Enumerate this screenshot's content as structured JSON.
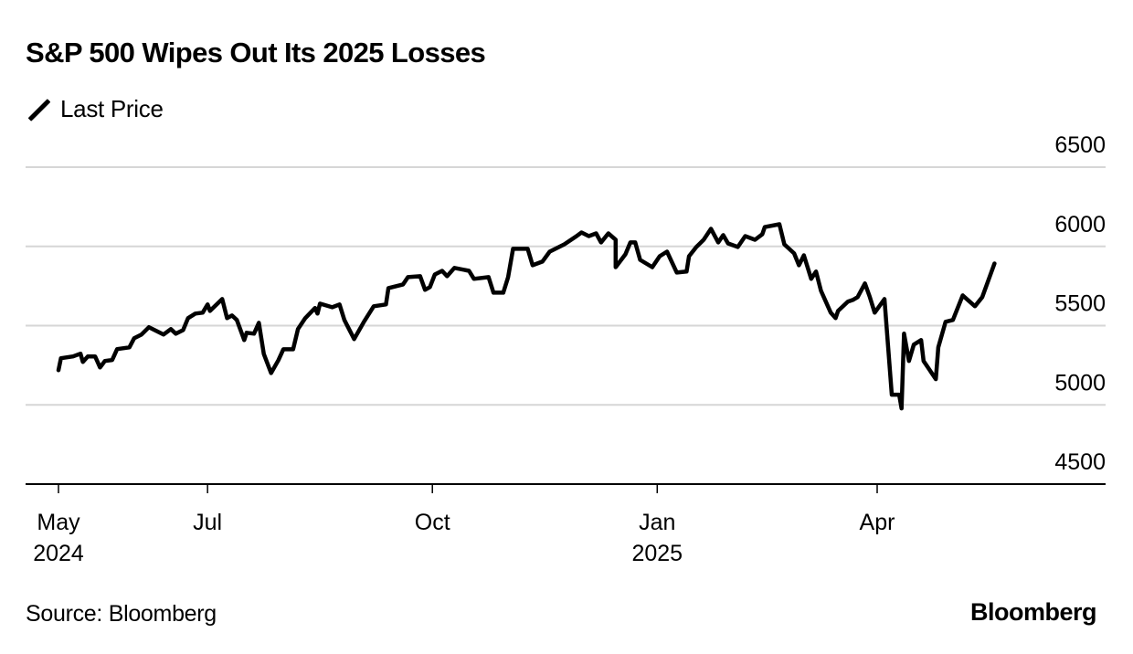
{
  "header": {
    "title": "S&P 500 Wipes Out Its 2025 Losses",
    "legend_label": "Last Price",
    "legend_icon": "line-swatch-icon"
  },
  "footer": {
    "source": "Source: Bloomberg",
    "brand": "Bloomberg"
  },
  "chart_data": {
    "type": "line",
    "title": "S&P 500 Wipes Out Its 2025 Losses",
    "xlabel": "",
    "ylabel": "",
    "ylim": [
      4500,
      6500
    ],
    "yticks": [
      4500,
      5000,
      5500,
      6000,
      6500
    ],
    "ytick_labels": [
      "4500",
      "5000",
      "5500",
      "6000",
      "6500"
    ],
    "xlim": [
      "2024-05-01",
      "2025-06-01"
    ],
    "xticks": [
      {
        "date": "2024-05-01",
        "label": "May",
        "sublabel": "2024"
      },
      {
        "date": "2024-07-01",
        "label": "Jul",
        "sublabel": ""
      },
      {
        "date": "2024-10-01",
        "label": "Oct",
        "sublabel": ""
      },
      {
        "date": "2025-01-01",
        "label": "Jan",
        "sublabel": "2025"
      },
      {
        "date": "2025-04-01",
        "label": "Apr",
        "sublabel": ""
      }
    ],
    "grid": true,
    "yaxis_side": "right",
    "legend": "top-left",
    "series": [
      {
        "name": "Last Price",
        "color": "#000000",
        "points": [
          [
            "2024-05-01",
            5219
          ],
          [
            "2024-05-02",
            5294
          ],
          [
            "2024-05-07",
            5306
          ],
          [
            "2024-05-10",
            5323
          ],
          [
            "2024-05-11",
            5271
          ],
          [
            "2024-05-13",
            5306
          ],
          [
            "2024-05-16",
            5306
          ],
          [
            "2024-05-18",
            5236
          ],
          [
            "2024-05-20",
            5277
          ],
          [
            "2024-05-23",
            5283
          ],
          [
            "2024-05-25",
            5352
          ],
          [
            "2024-05-30",
            5363
          ],
          [
            "2024-06-01",
            5421
          ],
          [
            "2024-06-04",
            5444
          ],
          [
            "2024-06-07",
            5490
          ],
          [
            "2024-06-13",
            5444
          ],
          [
            "2024-06-16",
            5478
          ],
          [
            "2024-06-18",
            5449
          ],
          [
            "2024-06-21",
            5472
          ],
          [
            "2024-06-23",
            5547
          ],
          [
            "2024-06-26",
            5576
          ],
          [
            "2024-06-29",
            5582
          ],
          [
            "2024-07-01",
            5634
          ],
          [
            "2024-07-02",
            5593
          ],
          [
            "2024-07-07",
            5668
          ],
          [
            "2024-07-09",
            5547
          ],
          [
            "2024-07-11",
            5564
          ],
          [
            "2024-07-13",
            5536
          ],
          [
            "2024-07-16",
            5409
          ],
          [
            "2024-07-17",
            5455
          ],
          [
            "2024-07-20",
            5449
          ],
          [
            "2024-07-22",
            5518
          ],
          [
            "2024-07-24",
            5322
          ],
          [
            "2024-07-27",
            5201
          ],
          [
            "2024-07-30",
            5282
          ],
          [
            "2024-08-01",
            5351
          ],
          [
            "2024-08-05",
            5351
          ],
          [
            "2024-08-07",
            5478
          ],
          [
            "2024-08-10",
            5547
          ],
          [
            "2024-08-14",
            5611
          ],
          [
            "2024-08-15",
            5576
          ],
          [
            "2024-08-16",
            5639
          ],
          [
            "2024-08-21",
            5616
          ],
          [
            "2024-08-24",
            5634
          ],
          [
            "2024-08-26",
            5536
          ],
          [
            "2024-08-30",
            5415
          ],
          [
            "2024-09-03",
            5524
          ],
          [
            "2024-09-07",
            5622
          ],
          [
            "2024-09-12",
            5634
          ],
          [
            "2024-09-13",
            5737
          ],
          [
            "2024-09-19",
            5760
          ],
          [
            "2024-09-21",
            5806
          ],
          [
            "2024-09-26",
            5812
          ],
          [
            "2024-09-28",
            5726
          ],
          [
            "2024-09-30",
            5743
          ],
          [
            "2024-10-02",
            5823
          ],
          [
            "2024-10-05",
            5846
          ],
          [
            "2024-10-07",
            5812
          ],
          [
            "2024-10-10",
            5864
          ],
          [
            "2024-10-16",
            5846
          ],
          [
            "2024-10-18",
            5795
          ],
          [
            "2024-10-24",
            5806
          ],
          [
            "2024-10-26",
            5708
          ],
          [
            "2024-10-30",
            5708
          ],
          [
            "2024-11-01",
            5806
          ],
          [
            "2024-11-03",
            5985
          ],
          [
            "2024-11-09",
            5985
          ],
          [
            "2024-11-11",
            5881
          ],
          [
            "2024-11-15",
            5904
          ],
          [
            "2024-11-18",
            5967
          ],
          [
            "2024-11-24",
            6013
          ],
          [
            "2024-11-29",
            6065
          ],
          [
            "2024-12-01",
            6088
          ],
          [
            "2024-12-04",
            6065
          ],
          [
            "2024-12-07",
            6082
          ],
          [
            "2024-12-09",
            6025
          ],
          [
            "2024-12-12",
            6082
          ],
          [
            "2024-12-15",
            6042
          ],
          [
            "2024-12-15",
            5869
          ],
          [
            "2024-12-19",
            5950
          ],
          [
            "2024-12-21",
            6025
          ],
          [
            "2024-12-23",
            6025
          ],
          [
            "2024-12-25",
            5915
          ],
          [
            "2024-12-30",
            5869
          ],
          [
            "2025-01-02",
            5938
          ],
          [
            "2025-01-05",
            5967
          ],
          [
            "2025-01-09",
            5835
          ],
          [
            "2025-01-13",
            5841
          ],
          [
            "2025-01-14",
            5938
          ],
          [
            "2025-01-17",
            5996
          ],
          [
            "2025-01-20",
            6042
          ],
          [
            "2025-01-23",
            6111
          ],
          [
            "2025-01-26",
            6025
          ],
          [
            "2025-01-28",
            6071
          ],
          [
            "2025-01-30",
            6019
          ],
          [
            "2025-02-03",
            5996
          ],
          [
            "2025-02-06",
            6065
          ],
          [
            "2025-02-10",
            6042
          ],
          [
            "2025-02-13",
            6077
          ],
          [
            "2025-02-14",
            6122
          ],
          [
            "2025-02-20",
            6140
          ],
          [
            "2025-02-22",
            6013
          ],
          [
            "2025-02-26",
            5956
          ],
          [
            "2025-02-28",
            5881
          ],
          [
            "2025-03-02",
            5944
          ],
          [
            "2025-03-05",
            5795
          ],
          [
            "2025-03-07",
            5841
          ],
          [
            "2025-03-09",
            5720
          ],
          [
            "2025-03-13",
            5582
          ],
          [
            "2025-03-15",
            5547
          ],
          [
            "2025-03-16",
            5593
          ],
          [
            "2025-03-20",
            5651
          ],
          [
            "2025-03-22",
            5662
          ],
          [
            "2025-03-24",
            5680
          ],
          [
            "2025-03-27",
            5766
          ],
          [
            "2025-03-29",
            5680
          ],
          [
            "2025-03-31",
            5582
          ],
          [
            "2025-04-04",
            5668
          ],
          [
            "2025-04-07",
            5064
          ],
          [
            "2025-04-10",
            5064
          ],
          [
            "2025-04-11",
            4978
          ],
          [
            "2025-04-12",
            5449
          ],
          [
            "2025-04-14",
            5277
          ],
          [
            "2025-04-16",
            5380
          ],
          [
            "2025-04-19",
            5409
          ],
          [
            "2025-04-20",
            5277
          ],
          [
            "2025-04-25",
            5162
          ],
          [
            "2025-04-26",
            5363
          ],
          [
            "2025-04-29",
            5524
          ],
          [
            "2025-05-02",
            5536
          ],
          [
            "2025-05-06",
            5691
          ],
          [
            "2025-05-11",
            5622
          ],
          [
            "2025-05-14",
            5680
          ],
          [
            "2025-05-19",
            5892
          ]
        ]
      }
    ]
  }
}
